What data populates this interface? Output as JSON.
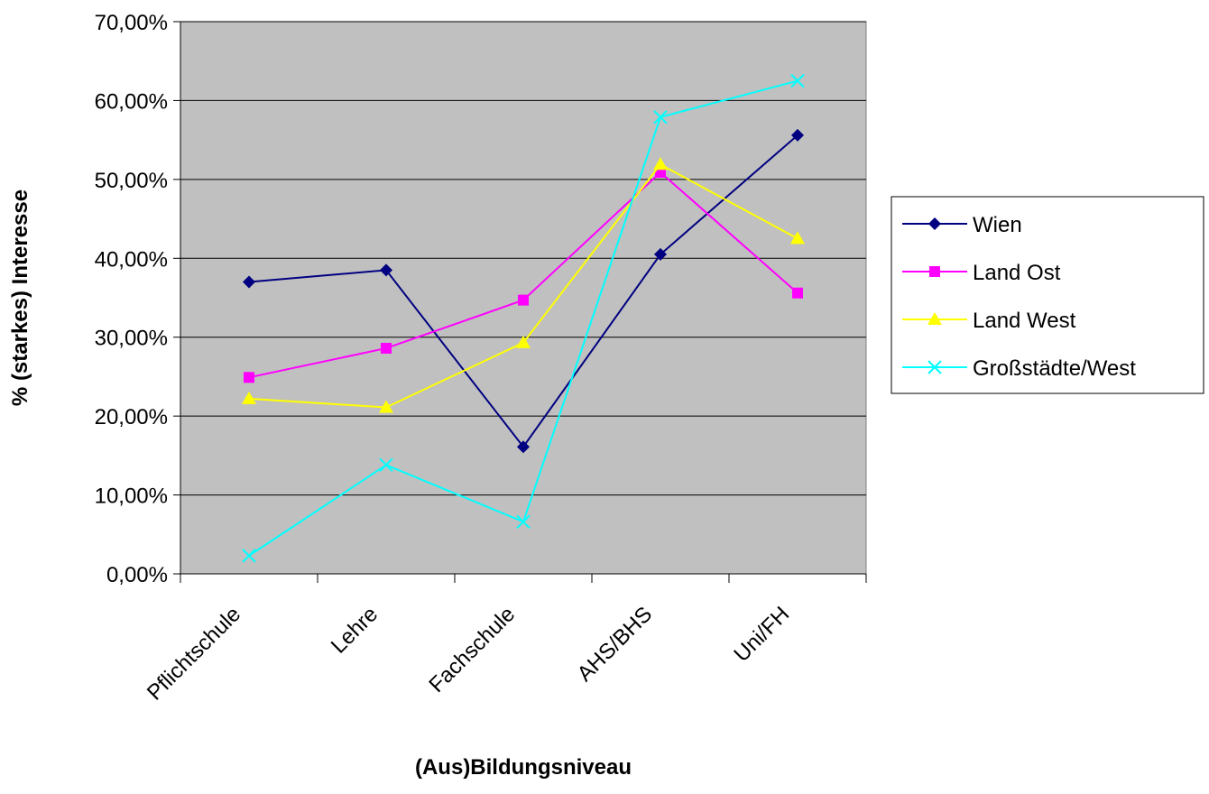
{
  "chart_data": {
    "type": "line",
    "title": "",
    "xlabel": "(Aus)Bildungsniveau",
    "ylabel": "% (starkes) Interesse",
    "categories": [
      "Pflichtschule",
      "Lehre",
      "Fachschule",
      "AHS/BHS",
      "Uni/FH"
    ],
    "ylim": [
      0,
      70
    ],
    "yticks": [
      0,
      10,
      20,
      30,
      40,
      50,
      60,
      70
    ],
    "ytick_labels": [
      "0,00%",
      "10,00%",
      "20,00%",
      "30,00%",
      "40,00%",
      "50,00%",
      "60,00%",
      "70,00%"
    ],
    "grid": true,
    "plot_background": "#c0c0c0",
    "legend_position": "right",
    "series": [
      {
        "name": "Wien",
        "values": [
          37.0,
          38.5,
          16.1,
          40.5,
          55.6
        ],
        "color": "#000080",
        "marker": "diamond"
      },
      {
        "name": "Land Ost",
        "values": [
          24.9,
          28.6,
          34.7,
          50.9,
          35.6
        ],
        "color": "#ff00ff",
        "marker": "square"
      },
      {
        "name": "Land West",
        "values": [
          22.2,
          21.1,
          29.3,
          51.9,
          42.5
        ],
        "color": "#ffff00",
        "marker": "triangle"
      },
      {
        "name": "Großstädte/West",
        "values": [
          2.3,
          13.8,
          6.6,
          57.9,
          62.5
        ],
        "color": "#00ffff",
        "marker": "x"
      }
    ]
  }
}
